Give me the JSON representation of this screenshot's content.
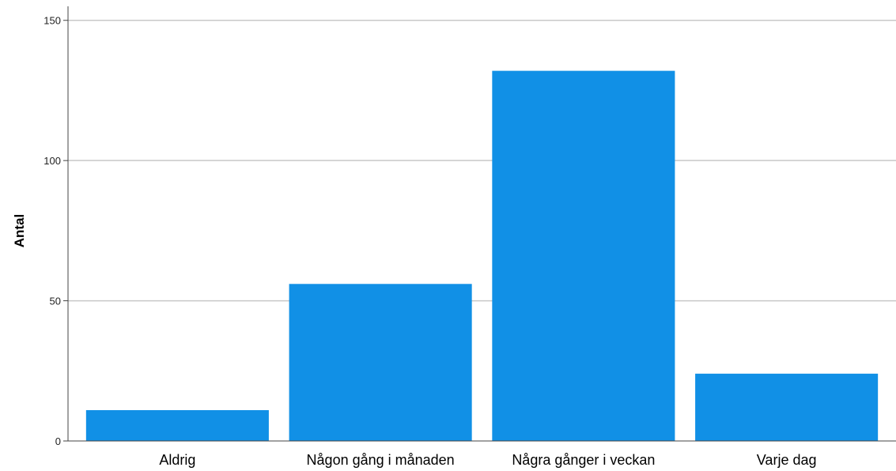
{
  "chart_data": {
    "type": "bar",
    "title": "",
    "xlabel": "",
    "ylabel": "Antal",
    "categories": [
      "Aldrig",
      "Någon gång i månaden",
      "Några gånger i veckan",
      "Varje dag"
    ],
    "values": [
      11,
      56,
      132,
      24
    ],
    "ylim": [
      0,
      155
    ],
    "yticks": [
      0,
      50,
      100,
      150
    ],
    "ytick_labels": [
      "0",
      "50",
      "100",
      "150"
    ],
    "grid": true,
    "bar_color": "#1190e6"
  }
}
